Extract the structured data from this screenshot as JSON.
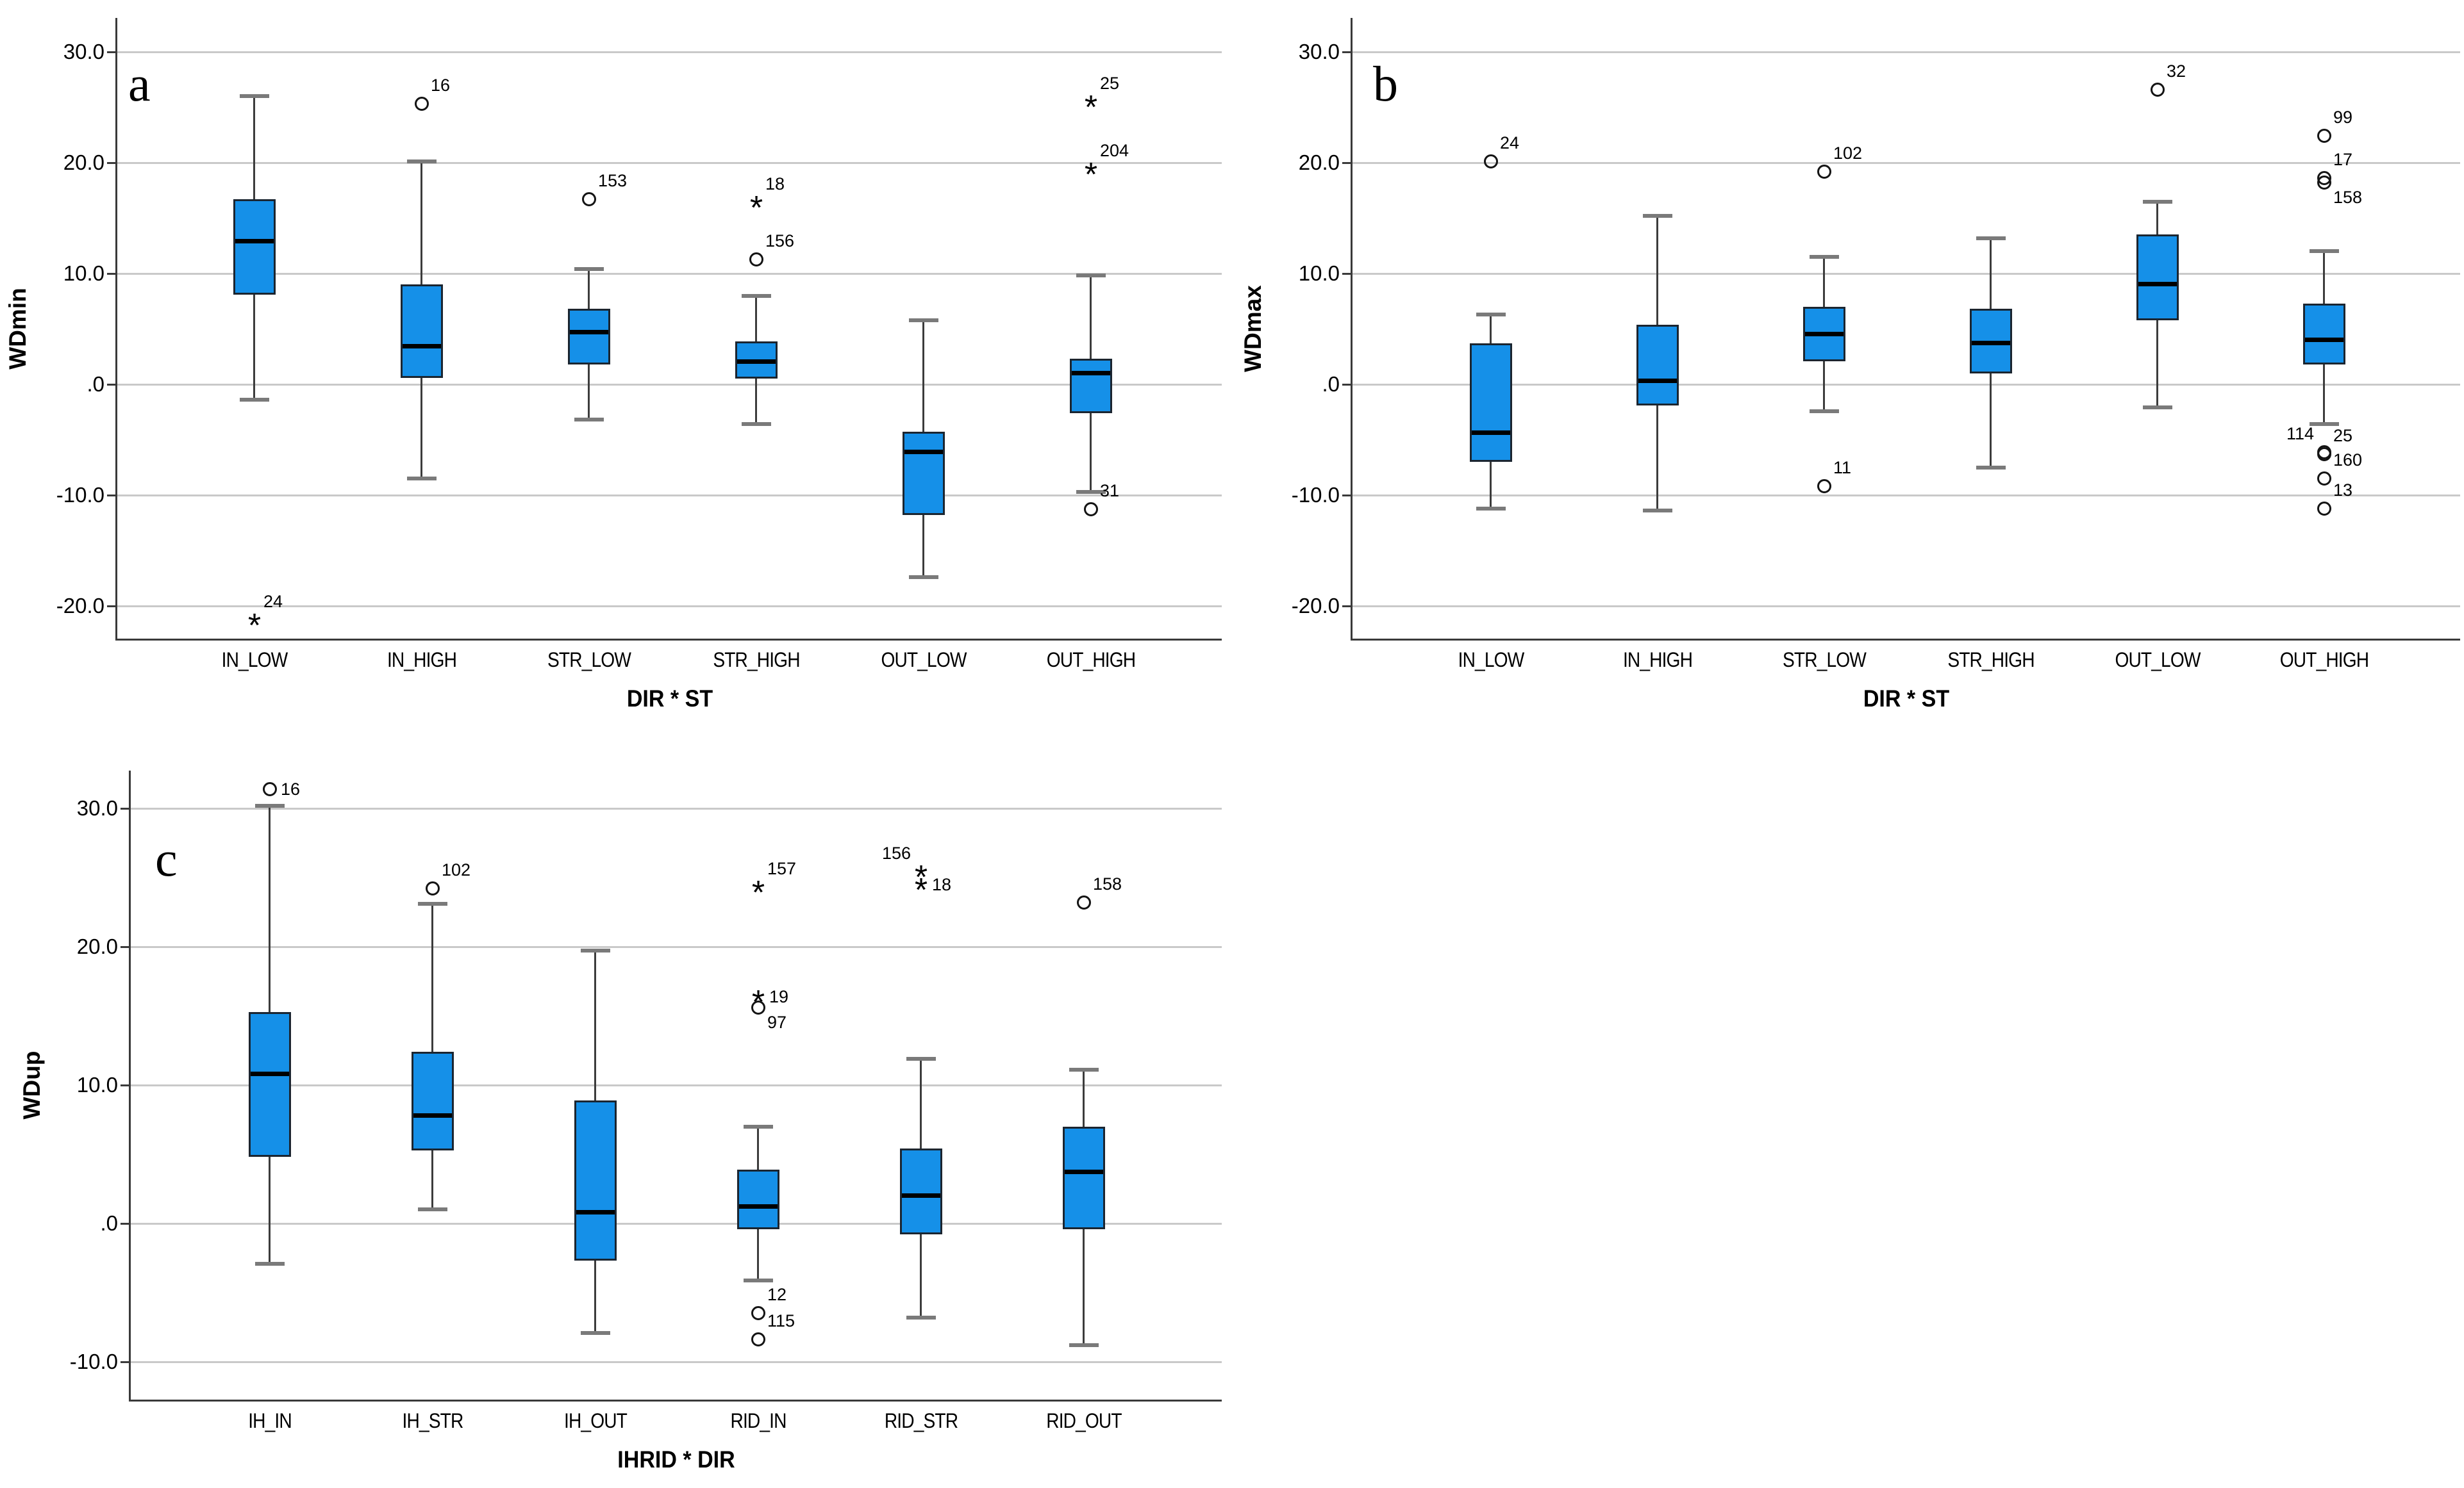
{
  "figure": {
    "background": "#ffffff"
  },
  "colors": {
    "box_fill": "#1590e8",
    "box_border": "#1b2530",
    "median": "#000000",
    "whisker": "#3c3c3c",
    "cap": "#7a7a7a",
    "gridline": "#c9c9c9",
    "axis": "#3a3a3a",
    "text": "#000000"
  },
  "chart_data": [
    {
      "panel_label": "a",
      "type": "boxplot",
      "ylabel": "WDmin",
      "xlabel": "DIR * ST",
      "ylim": [
        -23,
        33
      ],
      "grid": true,
      "yticks": [
        {
          "value": 30,
          "label": "30.0"
        },
        {
          "value": 20,
          "label": "20.0"
        },
        {
          "value": 10,
          "label": "10.0"
        },
        {
          "value": 0,
          "label": ".0"
        },
        {
          "value": -10,
          "label": "-10.0"
        },
        {
          "value": -20,
          "label": "-20.0"
        }
      ],
      "categories": [
        "IN_LOW",
        "IN_HIGH",
        "STR_LOW",
        "STR_HIGH",
        "OUT_LOW",
        "OUT_HIGH"
      ],
      "boxes": [
        {
          "category": "IN_LOW",
          "whisker_low": -1.4,
          "q1": 8.1,
          "median": 12.9,
          "q3": 16.7,
          "whisker_high": 26.0,
          "outliers": [
            {
              "value": -21.3,
              "marker": "star",
              "label": "24",
              "label_side": "tr"
            }
          ]
        },
        {
          "category": "IN_HIGH",
          "whisker_low": -8.5,
          "q1": 0.6,
          "median": 3.4,
          "q3": 9.0,
          "whisker_high": 20.1,
          "outliers": [
            {
              "value": 25.3,
              "marker": "circle",
              "label": "16",
              "label_side": "tr"
            }
          ]
        },
        {
          "category": "STR_LOW",
          "whisker_low": -3.2,
          "q1": 1.8,
          "median": 4.7,
          "q3": 6.8,
          "whisker_high": 10.4,
          "outliers": [
            {
              "value": 16.7,
              "marker": "circle",
              "label": "153",
              "label_side": "tr"
            }
          ]
        },
        {
          "category": "STR_HIGH",
          "whisker_low": -3.6,
          "q1": 0.5,
          "median": 2.0,
          "q3": 3.9,
          "whisker_high": 8.0,
          "outliers": [
            {
              "value": 11.3,
              "marker": "circle",
              "label": "156",
              "label_side": "tr"
            },
            {
              "value": 16.4,
              "marker": "star",
              "label": "18",
              "label_side": "tr"
            }
          ]
        },
        {
          "category": "OUT_LOW",
          "whisker_low": -17.4,
          "q1": -11.8,
          "median": -6.1,
          "q3": -4.3,
          "whisker_high": 5.8,
          "outliers": []
        },
        {
          "category": "OUT_HIGH",
          "whisker_low": -9.7,
          "q1": -2.6,
          "median": 1.0,
          "q3": 2.3,
          "whisker_high": 9.8,
          "outliers": [
            {
              "value": -11.3,
              "marker": "circle",
              "label": "31",
              "label_side": "tr"
            },
            {
              "value": 19.4,
              "marker": "star",
              "label": "204",
              "label_side": "tr"
            },
            {
              "value": 25.5,
              "marker": "star",
              "label": "25",
              "label_side": "tr"
            }
          ]
        }
      ]
    },
    {
      "panel_label": "b",
      "type": "boxplot",
      "ylabel": "WDmax",
      "xlabel": "DIR * ST",
      "ylim": [
        -23,
        33
      ],
      "grid": true,
      "yticks": [
        {
          "value": 30,
          "label": "30.0"
        },
        {
          "value": 20,
          "label": "20.0"
        },
        {
          "value": 10,
          "label": "10.0"
        },
        {
          "value": 0,
          "label": ".0"
        },
        {
          "value": -10,
          "label": "-10.0"
        },
        {
          "value": -20,
          "label": "-20.0"
        }
      ],
      "categories": [
        "IN_LOW",
        "IN_HIGH",
        "STR_LOW",
        "STR_HIGH",
        "OUT_LOW",
        "OUT_HIGH"
      ],
      "boxes": [
        {
          "category": "IN_LOW",
          "whisker_low": -11.2,
          "q1": -7.0,
          "median": -4.4,
          "q3": 3.7,
          "whisker_high": 6.3,
          "outliers": [
            {
              "value": 20.1,
              "marker": "circle",
              "label": "24",
              "label_side": "tr"
            }
          ]
        },
        {
          "category": "IN_HIGH",
          "whisker_low": -11.4,
          "q1": -1.9,
          "median": 0.3,
          "q3": 5.4,
          "whisker_high": 15.2,
          "outliers": []
        },
        {
          "category": "STR_LOW",
          "whisker_low": -2.4,
          "q1": 2.1,
          "median": 4.5,
          "q3": 7.0,
          "whisker_high": 11.5,
          "outliers": [
            {
              "value": 19.2,
              "marker": "circle",
              "label": "102",
              "label_side": "tr"
            },
            {
              "value": -9.2,
              "marker": "circle",
              "label": "11",
              "label_side": "tr"
            }
          ]
        },
        {
          "category": "STR_HIGH",
          "whisker_low": -7.5,
          "q1": 1.0,
          "median": 3.7,
          "q3": 6.8,
          "whisker_high": 13.2,
          "outliers": []
        },
        {
          "category": "OUT_LOW",
          "whisker_low": -2.1,
          "q1": 5.8,
          "median": 9.0,
          "q3": 13.5,
          "whisker_high": 16.5,
          "outliers": [
            {
              "value": 26.6,
              "marker": "circle",
              "label": "32",
              "label_side": "tr"
            }
          ]
        },
        {
          "category": "OUT_HIGH",
          "whisker_low": -3.6,
          "q1": 1.8,
          "median": 4.0,
          "q3": 7.3,
          "whisker_high": 12.0,
          "outliers": [
            {
              "value": 22.4,
              "marker": "circle",
              "label": "99",
              "label_side": "tr"
            },
            {
              "value": 18.6,
              "marker": "circle",
              "label": "17",
              "label_side": "tr"
            },
            {
              "value": 18.2,
              "marker": "circle",
              "label": "158",
              "label_side": "br"
            },
            {
              "value": -6.1,
              "marker": "circle",
              "label": "114",
              "label_side": "tl"
            },
            {
              "value": -6.3,
              "marker": "circle",
              "label": "25",
              "label_side": "tr"
            },
            {
              "value": -8.5,
              "marker": "circle",
              "label": "160",
              "label_side": "tr"
            },
            {
              "value": -11.2,
              "marker": "circle",
              "label": "13",
              "label_side": "tr"
            }
          ]
        }
      ]
    },
    {
      "panel_label": "c",
      "type": "boxplot",
      "ylabel": "WDup",
      "xlabel": "IHRID * DIR",
      "ylim": [
        -12.5,
        34
      ],
      "grid": true,
      "yticks": [
        {
          "value": 30,
          "label": "30.0"
        },
        {
          "value": 20,
          "label": "20.0"
        },
        {
          "value": 10,
          "label": "10.0"
        },
        {
          "value": 0,
          "label": ".0"
        },
        {
          "value": -10,
          "label": "-10.0"
        }
      ],
      "categories": [
        "IH_IN",
        "IH_STR",
        "IH_OUT",
        "RID_IN",
        "RID_STR",
        "RID_OUT"
      ],
      "boxes": [
        {
          "category": "IH_IN",
          "whisker_low": -2.9,
          "q1": 4.8,
          "median": 10.8,
          "q3": 15.3,
          "whisker_high": 30.2,
          "outliers": [
            {
              "value": 31.4,
              "marker": "circle",
              "label": "16",
              "label_side": "r"
            }
          ]
        },
        {
          "category": "IH_STR",
          "whisker_low": 1.0,
          "q1": 5.3,
          "median": 7.8,
          "q3": 12.4,
          "whisker_high": 23.1,
          "outliers": [
            {
              "value": 24.2,
              "marker": "circle",
              "label": "102",
              "label_side": "tr"
            }
          ]
        },
        {
          "category": "IH_OUT",
          "whisker_low": -7.9,
          "q1": -2.7,
          "median": 0.8,
          "q3": 8.9,
          "whisker_high": 19.7,
          "outliers": []
        },
        {
          "category": "RID_IN",
          "whisker_low": -4.1,
          "q1": -0.4,
          "median": 1.2,
          "q3": 3.9,
          "whisker_high": 7.0,
          "outliers": [
            {
              "value": 24.3,
              "marker": "star",
              "label": "157",
              "label_side": "tr"
            },
            {
              "value": 16.4,
              "marker": "star",
              "label": "19",
              "label_side": "r"
            },
            {
              "value": 15.6,
              "marker": "circle",
              "label": "97",
              "label_side": "br"
            },
            {
              "value": -6.5,
              "marker": "circle",
              "label": "12",
              "label_side": "tr"
            },
            {
              "value": -8.4,
              "marker": "circle",
              "label": "115",
              "label_side": "tr"
            }
          ]
        },
        {
          "category": "RID_STR",
          "whisker_low": -6.8,
          "q1": -0.8,
          "median": 2.0,
          "q3": 5.4,
          "whisker_high": 11.9,
          "outliers": [
            {
              "value": 25.4,
              "marker": "star",
              "label": "156",
              "label_side": "tl"
            },
            {
              "value": 24.5,
              "marker": "star",
              "label": "18",
              "label_side": "r"
            }
          ]
        },
        {
          "category": "RID_OUT",
          "whisker_low": -8.8,
          "q1": -0.4,
          "median": 3.7,
          "q3": 7.0,
          "whisker_high": 11.1,
          "outliers": [
            {
              "value": 23.2,
              "marker": "circle",
              "label": "158",
              "label_side": "tr"
            }
          ]
        }
      ]
    }
  ]
}
